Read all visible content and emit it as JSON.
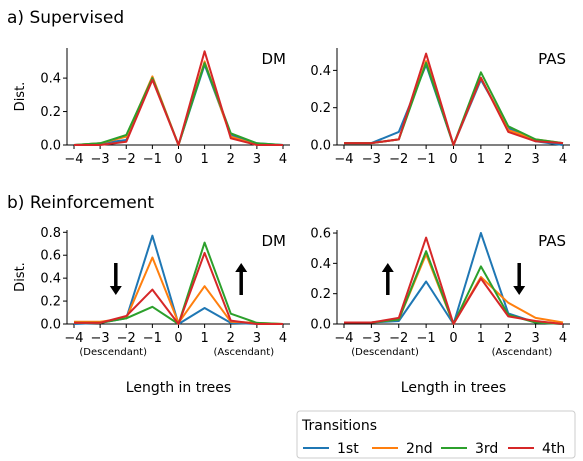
{
  "sections": [
    {
      "title": "a) Supervised"
    },
    {
      "title": "b) Reinforcement"
    }
  ],
  "shared": {
    "ylabel": "Dist.",
    "xlabel": "Length in trees",
    "descendant_label": "(Descendant)",
    "ascendant_label": "(Ascendant)"
  },
  "legend": {
    "title": "Transitions",
    "placement": "bottom-right"
  },
  "colors": {
    "1st": "#1f77b4",
    "2nd": "#ff7f0e",
    "3rd": "#2ca02c",
    "4th": "#d62728"
  },
  "chart_data": [
    {
      "type": "line",
      "section": "a) Supervised",
      "panel_label": "DM",
      "x": [
        -4,
        -3,
        -2,
        -1,
        0,
        1,
        2,
        3,
        4
      ],
      "x_ticks": [
        "−4",
        "−3",
        "−2",
        "−1",
        "0",
        "1",
        "2",
        "3",
        "4"
      ],
      "ylim": [
        0,
        0.58
      ],
      "y_ticks": [
        0.0,
        0.2,
        0.4
      ],
      "y_tick_labels": [
        "0.0",
        "0.2",
        "0.4"
      ],
      "ylabel": "Dist.",
      "xlabel": "",
      "direction_labels": false,
      "arrows": [],
      "grid": false,
      "series": [
        {
          "name": "1st",
          "values": [
            0.0,
            0.01,
            0.03,
            0.4,
            0.0,
            0.48,
            0.06,
            0.01,
            0.0
          ]
        },
        {
          "name": "2nd",
          "values": [
            0.0,
            0.01,
            0.05,
            0.41,
            0.0,
            0.5,
            0.05,
            0.0,
            0.0
          ]
        },
        {
          "name": "3rd",
          "values": [
            0.0,
            0.01,
            0.06,
            0.4,
            0.0,
            0.49,
            0.07,
            0.01,
            0.0
          ]
        },
        {
          "name": "4th",
          "values": [
            0.0,
            0.0,
            0.02,
            0.39,
            0.0,
            0.56,
            0.04,
            0.0,
            0.0
          ]
        }
      ]
    },
    {
      "type": "line",
      "section": "a) Supervised",
      "panel_label": "PAS",
      "x": [
        -4,
        -3,
        -2,
        -1,
        0,
        1,
        2,
        3,
        4
      ],
      "x_ticks": [
        "−4",
        "−3",
        "−2",
        "−1",
        "0",
        "1",
        "2",
        "3",
        "4"
      ],
      "ylim": [
        0,
        0.52
      ],
      "y_ticks": [
        0.0,
        0.2,
        0.4
      ],
      "y_tick_labels": [
        "0.0",
        "0.2",
        "0.4"
      ],
      "ylabel": "",
      "xlabel": "",
      "direction_labels": false,
      "arrows": [],
      "grid": false,
      "series": [
        {
          "name": "1st",
          "values": [
            0.01,
            0.01,
            0.07,
            0.43,
            0.0,
            0.35,
            0.09,
            0.02,
            0.0
          ]
        },
        {
          "name": "2nd",
          "values": [
            0.01,
            0.01,
            0.03,
            0.45,
            0.0,
            0.36,
            0.08,
            0.03,
            0.01
          ]
        },
        {
          "name": "3rd",
          "values": [
            0.01,
            0.01,
            0.03,
            0.44,
            0.0,
            0.39,
            0.1,
            0.03,
            0.01
          ]
        },
        {
          "name": "4th",
          "values": [
            0.01,
            0.01,
            0.03,
            0.49,
            0.0,
            0.36,
            0.07,
            0.02,
            0.01
          ]
        }
      ]
    },
    {
      "type": "line",
      "section": "b) Reinforcement",
      "panel_label": "DM",
      "x": [
        -4,
        -3,
        -2,
        -1,
        0,
        1,
        2,
        3,
        4
      ],
      "x_ticks": [
        "−4",
        "−3",
        "−2",
        "−1",
        "0",
        "1",
        "2",
        "3",
        "4"
      ],
      "ylim": [
        0,
        0.82
      ],
      "y_ticks": [
        0.0,
        0.2,
        0.4,
        0.6,
        0.8
      ],
      "y_tick_labels": [
        "0.0",
        "0.2",
        "0.4",
        "0.6",
        "0.8"
      ],
      "ylabel": "Dist.",
      "xlabel": "Length in trees",
      "direction_labels": true,
      "arrows": [
        {
          "x": -2.4,
          "direction": "down"
        },
        {
          "x": 2.4,
          "direction": "up"
        }
      ],
      "grid": false,
      "series": [
        {
          "name": "1st",
          "values": [
            0.0,
            0.01,
            0.05,
            0.77,
            0.0,
            0.14,
            0.01,
            0.0,
            0.0
          ]
        },
        {
          "name": "2nd",
          "values": [
            0.02,
            0.02,
            0.05,
            0.58,
            0.01,
            0.33,
            0.02,
            0.01,
            0.0
          ]
        },
        {
          "name": "3rd",
          "values": [
            0.01,
            0.01,
            0.05,
            0.15,
            0.0,
            0.71,
            0.09,
            0.01,
            0.0
          ]
        },
        {
          "name": "4th",
          "values": [
            0.01,
            0.01,
            0.07,
            0.3,
            0.0,
            0.62,
            0.03,
            0.0,
            0.0
          ]
        }
      ]
    },
    {
      "type": "line",
      "section": "b) Reinforcement",
      "panel_label": "PAS",
      "x": [
        -4,
        -3,
        -2,
        -1,
        0,
        1,
        2,
        3,
        4
      ],
      "x_ticks": [
        "−4",
        "−3",
        "−2",
        "−1",
        "0",
        "1",
        "2",
        "3",
        "4"
      ],
      "ylim": [
        0,
        0.62
      ],
      "y_ticks": [
        0.0,
        0.2,
        0.4,
        0.6
      ],
      "y_tick_labels": [
        "0.0",
        "0.2",
        "0.4",
        "0.6"
      ],
      "ylabel": "",
      "xlabel": "Length in trees",
      "direction_labels": true,
      "arrows": [
        {
          "x": -2.4,
          "direction": "up"
        },
        {
          "x": 2.4,
          "direction": "down"
        }
      ],
      "grid": false,
      "series": [
        {
          "name": "1st",
          "values": [
            0.01,
            0.01,
            0.02,
            0.28,
            0.0,
            0.6,
            0.07,
            0.01,
            0.0
          ]
        },
        {
          "name": "2nd",
          "values": [
            0.01,
            0.01,
            0.03,
            0.46,
            0.0,
            0.31,
            0.14,
            0.04,
            0.01
          ]
        },
        {
          "name": "3rd",
          "values": [
            0.01,
            0.01,
            0.03,
            0.48,
            0.0,
            0.38,
            0.06,
            0.01,
            0.0
          ]
        },
        {
          "name": "4th",
          "values": [
            0.01,
            0.01,
            0.04,
            0.57,
            0.0,
            0.3,
            0.05,
            0.02,
            0.0
          ]
        }
      ]
    }
  ]
}
